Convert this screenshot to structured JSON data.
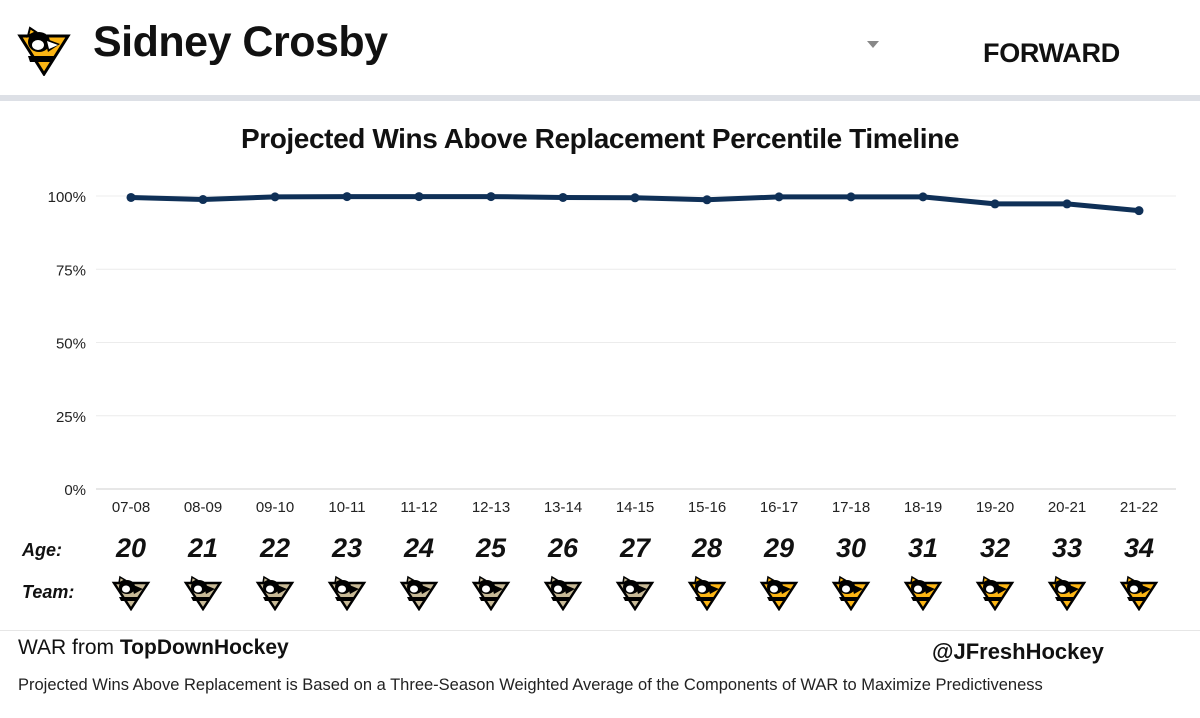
{
  "header": {
    "team_logo_icon": "penguins-logo-icon",
    "player_name": "Sidney Crosby",
    "dropdown_icon": "triangle-down-icon",
    "position": "FORWARD"
  },
  "chart_data": {
    "type": "line",
    "title": "Projected Wins Above Replacement Percentile Timeline",
    "xlabel": "",
    "ylabel": "",
    "categories": [
      "07-08",
      "08-09",
      "09-10",
      "10-11",
      "11-12",
      "12-13",
      "13-14",
      "14-15",
      "15-16",
      "16-17",
      "17-18",
      "18-19",
      "19-20",
      "20-21",
      "21-22"
    ],
    "series": [
      {
        "values": [
          99.5,
          98.8,
          99.7,
          99.8,
          99.8,
          99.8,
          99.5,
          99.4,
          98.7,
          99.7,
          99.7,
          99.7,
          97.3,
          97.3,
          95.0
        ]
      }
    ],
    "ylim": [
      0,
      100
    ],
    "y_ticks": [
      "0%",
      "25%",
      "50%",
      "75%",
      "100%"
    ],
    "grid": true,
    "line_color": "#0f3057"
  },
  "rows": {
    "age_label": "Age:",
    "team_label": "Team:",
    "ages": [
      "20",
      "21",
      "22",
      "23",
      "24",
      "25",
      "26",
      "27",
      "28",
      "29",
      "30",
      "31",
      "32",
      "33",
      "34"
    ],
    "teams": [
      "penguins-vegas-gold",
      "penguins-vegas-gold",
      "penguins-vegas-gold",
      "penguins-vegas-gold",
      "penguins-vegas-gold",
      "penguins-vegas-gold",
      "penguins-vegas-gold",
      "penguins-vegas-gold",
      "penguins-gold",
      "penguins-gold",
      "penguins-gold",
      "penguins-gold",
      "penguins-gold",
      "penguins-gold",
      "penguins-gold"
    ]
  },
  "colors": {
    "vegas_gold": "#c7b996",
    "gold": "#fcb514",
    "black": "#000000",
    "line": "#0f3057"
  },
  "footer": {
    "war_prefix": "WAR from ",
    "war_source": "TopDownHockey",
    "handle": "@JFreshHockey",
    "note": "Projected Wins Above Replacement is Based on a Three-Season Weighted Average of the Components of WAR to Maximize Predictiveness"
  }
}
